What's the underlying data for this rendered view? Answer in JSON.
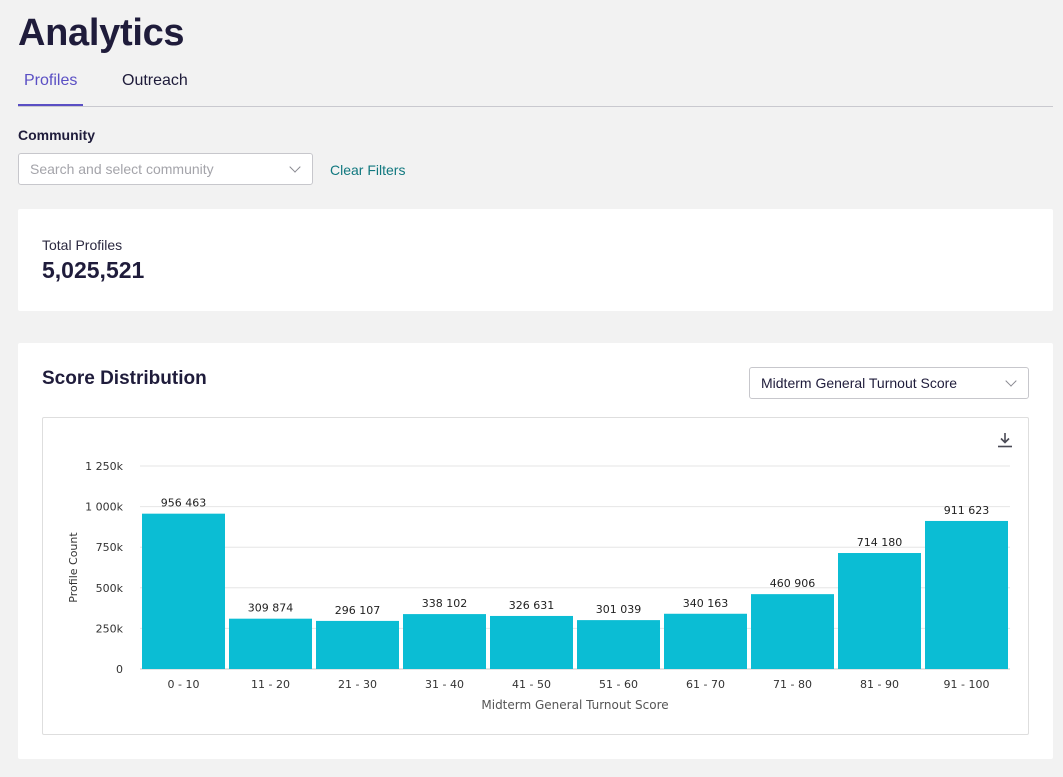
{
  "page": {
    "title": "Analytics"
  },
  "tabs": [
    {
      "label": "Profiles",
      "active": true
    },
    {
      "label": "Outreach",
      "active": false
    }
  ],
  "filters": {
    "community_label": "Community",
    "community_placeholder": "Search and select community",
    "clear_label": "Clear Filters"
  },
  "summary": {
    "total_label": "Total Profiles",
    "total_value": "5,025,521"
  },
  "distribution": {
    "title": "Score Distribution",
    "selected_score": "Midterm General Turnout Score"
  },
  "icons": {
    "download": "download-icon",
    "dropdown": "chevron-down-icon"
  },
  "colors": {
    "accent": "#5a4fc4",
    "bar": "#0bbdd4",
    "link": "#11787f"
  },
  "chart_data": {
    "type": "bar",
    "categories": [
      "0 - 10",
      "11 - 20",
      "21 - 30",
      "31 - 40",
      "41 - 50",
      "51 - 60",
      "61 - 70",
      "71 - 80",
      "81 - 90",
      "91 - 100"
    ],
    "values": [
      956463,
      309874,
      296107,
      338102,
      326631,
      301039,
      340163,
      460906,
      714180,
      911623
    ],
    "value_labels": [
      "956 463",
      "309 874",
      "296 107",
      "338 102",
      "326 631",
      "301 039",
      "340 163",
      "460 906",
      "714 180",
      "911 623"
    ],
    "xlabel": "Midterm General Turnout Score",
    "ylabel": "Profile Count",
    "ylim": [
      0,
      1250000
    ],
    "yticks": [
      0,
      250000,
      500000,
      750000,
      1000000,
      1250000
    ],
    "ytick_labels": [
      "0",
      "250k",
      "500k",
      "750k",
      "1 000k",
      "1 250k"
    ],
    "grid": true,
    "legend": "none"
  }
}
